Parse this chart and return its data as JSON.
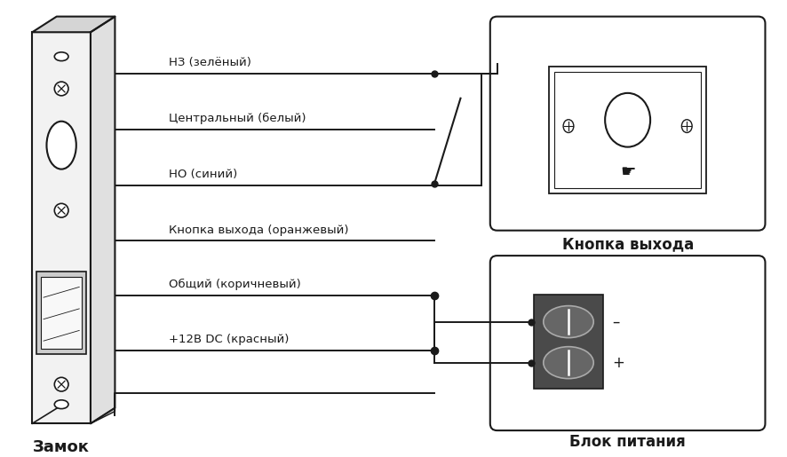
{
  "bg_color": "#ffffff",
  "line_color": "#1a1a1a",
  "wire_labels": [
    "НЗ (зелёный)",
    "Центральный (белый)",
    "НО (синий)",
    "Кнопка выхода (оранжевый)",
    "Общий (коричневый)",
    "+12В DC (красный)"
  ],
  "label_zamok": "Замок",
  "label_knopka": "Кнопка выхода",
  "label_blok": "Блок питания"
}
